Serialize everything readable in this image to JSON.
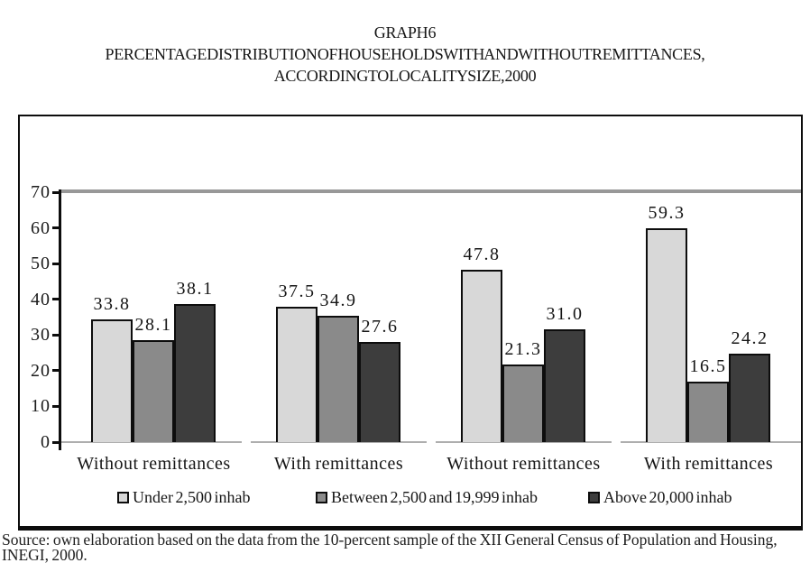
{
  "title": {
    "line1": "GRAPH 6",
    "line2": "PERCENTAGE DISTRIBUTION OF HOUSEHOLDS WITH AND WITHOUT REMITTANCES,",
    "line3": "ACCORDING TO LOCALITY SIZE, 2000"
  },
  "chart_data": {
    "type": "bar",
    "title": "GRAPH 6 — PERCENTAGE DISTRIBUTION OF HOUSEHOLDS WITH AND WITHOUT REMITTANCES, ACCORDING TO LOCALITY SIZE, 2000",
    "categories": [
      "Without remittances",
      "With remittances",
      "Without remittances",
      "With remittances"
    ],
    "series": [
      {
        "name": "Under 2,500 inhab",
        "color": "#d8d8d8",
        "values": [
          33.8,
          37.5,
          47.8,
          59.3
        ]
      },
      {
        "name": "Between 2,500 and 19,999 inhab",
        "color": "#8a8a8a",
        "values": [
          28.1,
          34.9,
          21.3,
          16.5
        ]
      },
      {
        "name": "Above 20,000 inhab",
        "color": "#3d3d3d",
        "values": [
          38.1,
          27.6,
          31.0,
          24.2
        ]
      }
    ],
    "xlabel": "",
    "ylabel": "",
    "ylim": [
      0,
      70
    ],
    "yticks": [
      0,
      10,
      20,
      30,
      40,
      50,
      60,
      70
    ],
    "grid": "single gray gridline at y=70 only",
    "legend_position": "bottom",
    "value_labels": "one decimal above each bar",
    "bar_border_color": "#0d0d0d",
    "gridline_color": "#989898",
    "baseline_color": "#aeaeae"
  },
  "source": {
    "line1": "Source: own elaboration based on the data from the 10-percent sample of the XII General Census of Population and Housing,",
    "line2": "INEGI, 2000."
  }
}
